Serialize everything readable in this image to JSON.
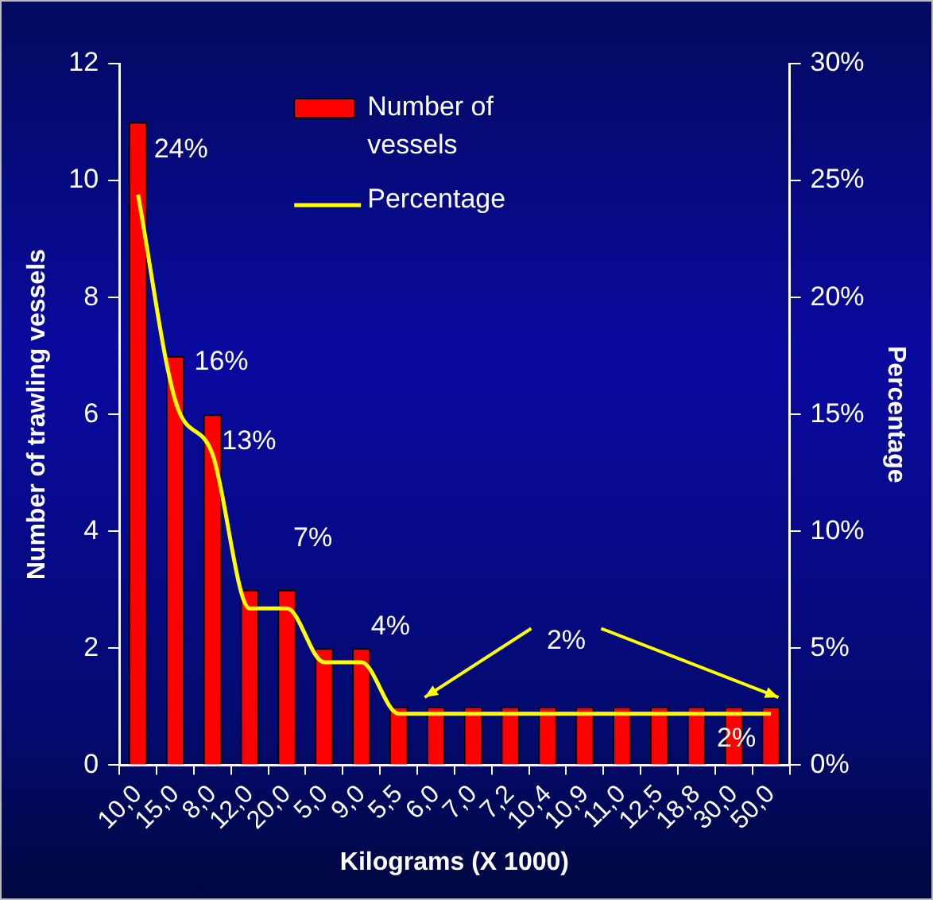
{
  "chart_data": {
    "type": "bar",
    "xlabel": "Kilograms (X 1000)",
    "ylabel": "Number of trawling vessels",
    "y2label": "Percentage",
    "categories": [
      "10,0",
      "15,0",
      "8,0",
      "12,0",
      "20,0",
      "5,0",
      "9,0",
      "5,5",
      "6,0",
      "7,0",
      "7,2",
      "10,4",
      "10,9",
      "11,0",
      "12,5",
      "18,8",
      "30,0",
      "50,0"
    ],
    "series": [
      {
        "name": "Number of vessels",
        "color": "#ff0000",
        "values": [
          11,
          7,
          6,
          3,
          3,
          2,
          2,
          1,
          1,
          1,
          1,
          1,
          1,
          1,
          1,
          1,
          1,
          1
        ]
      },
      {
        "name": "Percentage",
        "type": "line",
        "axis": "y2",
        "color": "#ffff00",
        "values": [
          24.4,
          15.6,
          13.3,
          6.7,
          6.7,
          4.4,
          4.4,
          2.2,
          2.2,
          2.2,
          2.2,
          2.2,
          2.2,
          2.2,
          2.2,
          2.2,
          2.2,
          2.2
        ]
      }
    ],
    "ylim": [
      0,
      12
    ],
    "yticks": [
      0,
      2,
      4,
      6,
      8,
      10,
      12
    ],
    "y2lim": [
      0,
      30
    ],
    "y2ticks": [
      {
        "value": 0,
        "label": "0%"
      },
      {
        "value": 5,
        "label": "5%"
      },
      {
        "value": 10,
        "label": "10%"
      },
      {
        "value": 15,
        "label": "15%"
      },
      {
        "value": 20,
        "label": "20%"
      },
      {
        "value": 25,
        "label": "25%"
      },
      {
        "value": 30,
        "label": "30%"
      }
    ],
    "annotations": [
      "24%",
      "16%",
      "13%",
      "7%",
      "4%",
      "2%",
      "2%"
    ],
    "grid": false,
    "legend": "top",
    "marker": "none",
    "line_style": "solid"
  }
}
